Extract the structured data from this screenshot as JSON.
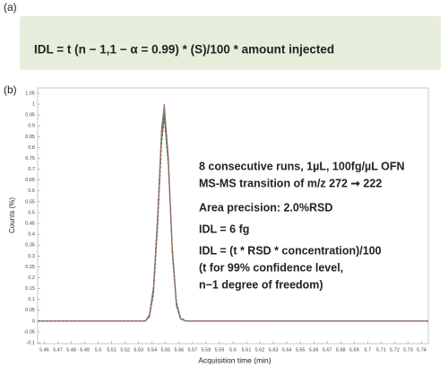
{
  "panel_a": {
    "label": "(a)",
    "formula": "IDL = t (n − 1,1 − α = 0.99) * (S)/100 * amount injected"
  },
  "chart_data": {
    "type": "line",
    "label": "(b)",
    "x_label": "Acquisition time (min)",
    "y_label": "Counts (%)",
    "x": [
      5.455,
      5.53,
      5.535,
      5.538,
      5.541,
      5.544,
      5.547,
      5.549,
      5.552,
      5.555,
      5.558,
      5.561,
      5.565,
      5.57,
      5.745
    ],
    "series": [
      {
        "color": "#d62728",
        "values": [
          0,
          0,
          0,
          0.02,
          0.14,
          0.46,
          0.88,
          1.0,
          0.76,
          0.33,
          0.08,
          0.01,
          0,
          0,
          0
        ]
      },
      {
        "color": "#1f4fd6",
        "values": [
          0,
          0,
          0,
          0.02,
          0.15,
          0.47,
          0.87,
          0.98,
          0.73,
          0.31,
          0.08,
          0.01,
          0,
          0,
          0
        ]
      },
      {
        "color": "#8e44ad",
        "values": [
          0,
          0,
          0,
          0.03,
          0.16,
          0.48,
          0.86,
          0.96,
          0.72,
          0.31,
          0.07,
          0.01,
          0,
          0,
          0
        ]
      },
      {
        "color": "#2ca02c",
        "values": [
          0,
          0,
          0,
          0.02,
          0.13,
          0.44,
          0.85,
          0.97,
          0.75,
          0.34,
          0.09,
          0.01,
          0,
          0,
          0
        ]
      },
      {
        "color": "#ff7f0e",
        "values": [
          0,
          0,
          0,
          0.02,
          0.14,
          0.45,
          0.83,
          0.94,
          0.72,
          0.32,
          0.08,
          0.01,
          0,
          0,
          0
        ]
      },
      {
        "color": "#17a2b8",
        "values": [
          0,
          0,
          0,
          0.02,
          0.12,
          0.42,
          0.81,
          0.93,
          0.72,
          0.33,
          0.09,
          0.02,
          0,
          0,
          0
        ]
      },
      {
        "color": "#7f7f7f",
        "values": [
          0,
          0,
          0,
          0.02,
          0.15,
          0.48,
          0.89,
          0.99,
          0.74,
          0.31,
          0.07,
          0.01,
          0,
          0,
          0
        ]
      },
      {
        "color": "#8c564b",
        "values": [
          0,
          0,
          0,
          0.02,
          0.13,
          0.43,
          0.83,
          0.95,
          0.74,
          0.34,
          0.09,
          0.01,
          0,
          0,
          0
        ]
      }
    ],
    "xlim": [
      5.455,
      5.745
    ],
    "ylim": [
      -0.1,
      1.05
    ],
    "xticks": [
      5.46,
      5.47,
      5.48,
      5.49,
      5.5,
      5.51,
      5.52,
      5.53,
      5.54,
      5.55,
      5.56,
      5.57,
      5.58,
      5.59,
      5.6,
      5.61,
      5.62,
      5.63,
      5.64,
      5.65,
      5.66,
      5.67,
      5.68,
      5.69,
      5.7,
      5.71,
      5.72,
      5.73,
      5.74
    ],
    "yticks": [
      -0.1,
      -0.05,
      0,
      0.05,
      0.1,
      0.15,
      0.2,
      0.25,
      0.3,
      0.35,
      0.4,
      0.45,
      0.5,
      0.55,
      0.6,
      0.65,
      0.7,
      0.75,
      0.8,
      0.85,
      0.9,
      0.95,
      1,
      1.05
    ],
    "annotations": [
      {
        "text": "8 consecutive runs, 1µL, 100fg/µL OFN",
        "color": "#1a1a1a"
      },
      {
        "text": "MS-MS transition of m/z 272 ➞ 222",
        "color": "#1a1a1a"
      },
      {
        "text": "Area precision: 2.0%RSD",
        "color": "#1aa3d9"
      },
      {
        "text": "IDL = 6 fg",
        "color": "#1aa3d9"
      },
      {
        "text": "IDL = (t * RSD * concentration)/100",
        "color": "#1a1a1a"
      },
      {
        "text": "(t for 99% confidence level,",
        "color": "#1a1a1a"
      },
      {
        "text": "n−1 degree of freedom)",
        "color": "#1a1a1a"
      }
    ]
  }
}
